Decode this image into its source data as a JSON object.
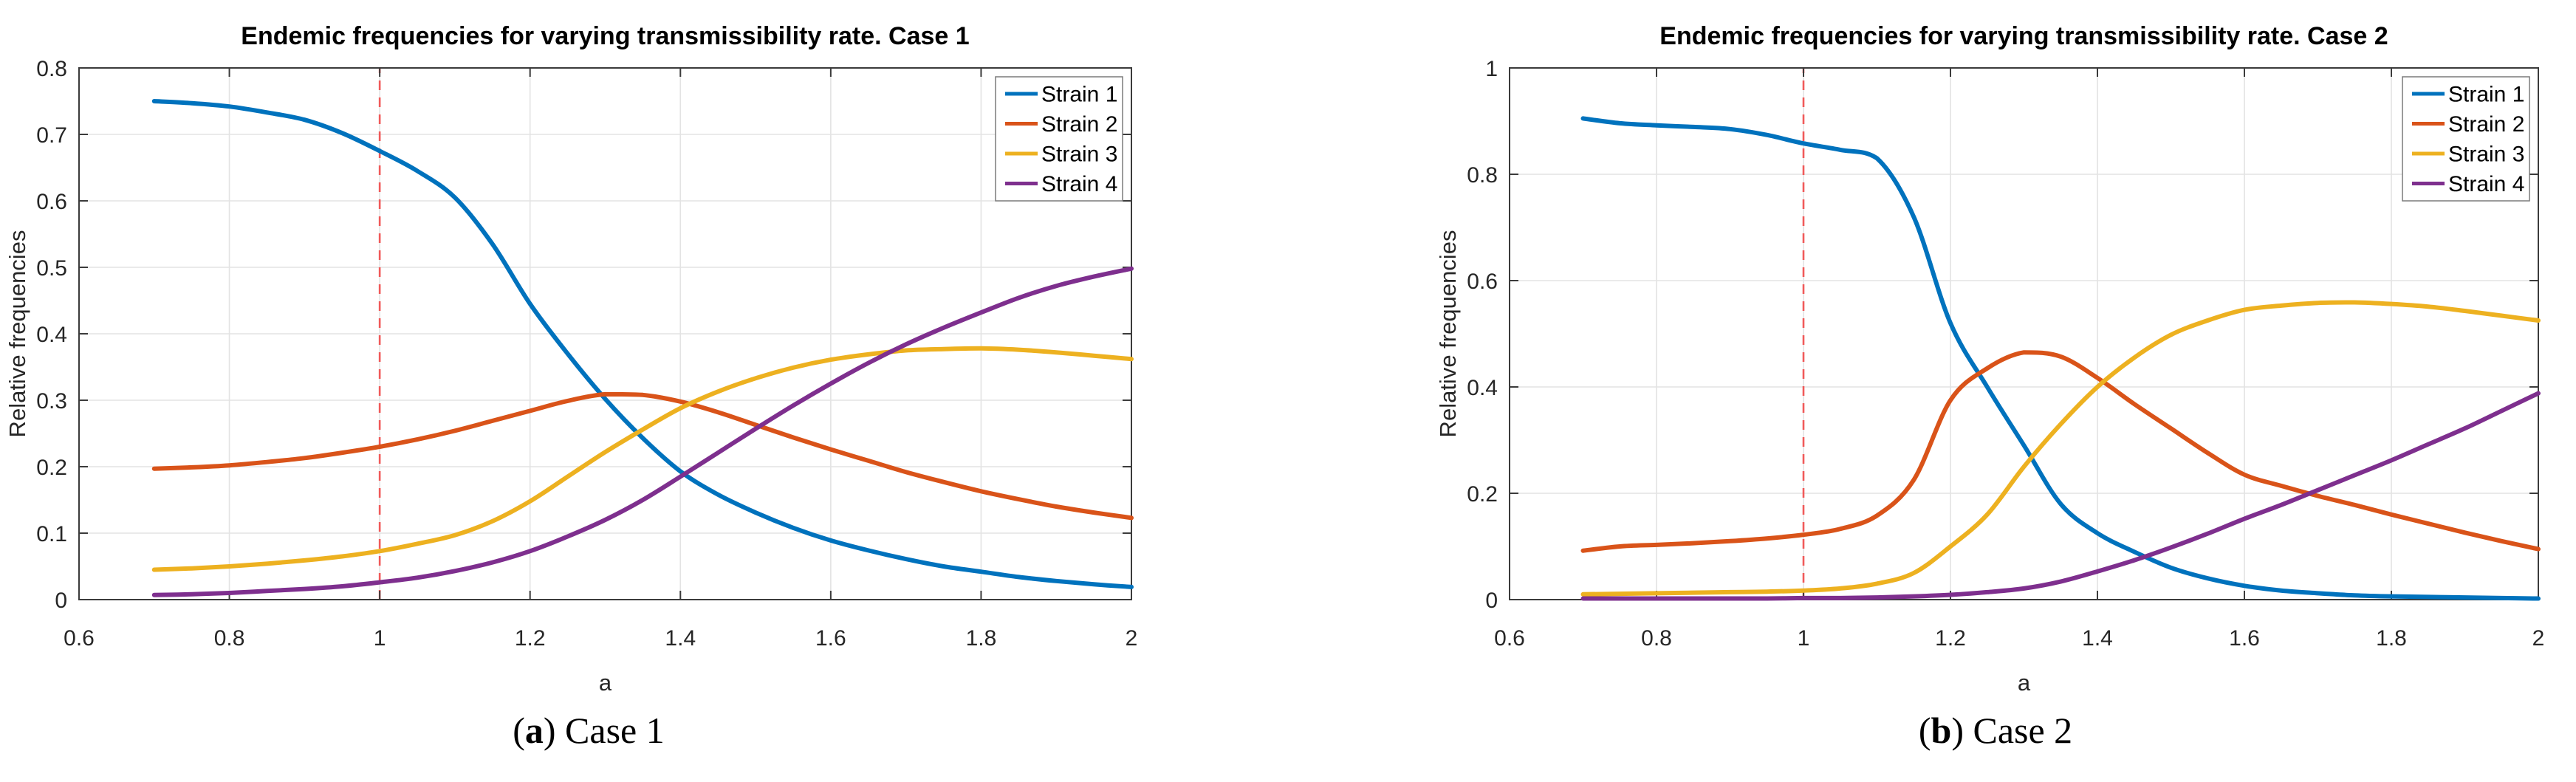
{
  "style": {
    "background": "#ffffff",
    "grid_color": "#e3e3e3",
    "axis_color": "#3b3b3b",
    "tick_text_color": "#262626",
    "title_color": "#000000",
    "vline_color": "#f05a5a",
    "legend_border_color": "#7a7a7a",
    "legend_background": "#ffffff"
  },
  "chart_data": [
    {
      "type": "line",
      "title": "Endemic frequencies for varying transmissibility rate. Case 1",
      "xlabel": "a",
      "ylabel": "Relative frequencies",
      "xlim": [
        0.6,
        2
      ],
      "ylim": [
        0,
        0.8
      ],
      "xticks": [
        0.6,
        0.8,
        1,
        1.2,
        1.4,
        1.6,
        1.8,
        2
      ],
      "yticks": [
        0,
        0.1,
        0.2,
        0.3,
        0.4,
        0.5,
        0.6,
        0.7,
        0.8
      ],
      "grid": true,
      "legend_position": "northeast",
      "vline_x": 1,
      "x": [
        0.7,
        0.75,
        0.8,
        0.85,
        0.9,
        0.95,
        1,
        1.05,
        1.1,
        1.15,
        1.2,
        1.25,
        1.3,
        1.35,
        1.4,
        1.45,
        1.5,
        1.55,
        1.6,
        1.65,
        1.7,
        1.75,
        1.8,
        1.85,
        1.9,
        1.95,
        2
      ],
      "series": [
        {
          "name": "Strain 1",
          "color": "#0072BD",
          "values": [
            0.75,
            0.747,
            0.742,
            0.733,
            0.722,
            0.702,
            0.675,
            0.645,
            0.605,
            0.535,
            0.445,
            0.37,
            0.302,
            0.243,
            0.193,
            0.158,
            0.131,
            0.108,
            0.089,
            0.074,
            0.061,
            0.05,
            0.042,
            0.034,
            0.028,
            0.023,
            0.019
          ]
        },
        {
          "name": "Strain 2",
          "color": "#D95319",
          "values": [
            0.197,
            0.199,
            0.202,
            0.207,
            0.213,
            0.221,
            0.23,
            0.241,
            0.254,
            0.269,
            0.284,
            0.299,
            0.309,
            0.308,
            0.298,
            0.282,
            0.263,
            0.244,
            0.226,
            0.209,
            0.192,
            0.177,
            0.163,
            0.151,
            0.14,
            0.131,
            0.123
          ]
        },
        {
          "name": "Strain 3",
          "color": "#EDB120",
          "values": [
            0.045,
            0.047,
            0.05,
            0.054,
            0.059,
            0.065,
            0.073,
            0.084,
            0.097,
            0.118,
            0.148,
            0.185,
            0.222,
            0.256,
            0.288,
            0.313,
            0.333,
            0.349,
            0.361,
            0.369,
            0.375,
            0.377,
            0.378,
            0.376,
            0.372,
            0.367,
            0.362
          ]
        },
        {
          "name": "Strain 4",
          "color": "#7E2F8E",
          "values": [
            0.007,
            0.008,
            0.01,
            0.013,
            0.016,
            0.02,
            0.026,
            0.033,
            0.043,
            0.056,
            0.073,
            0.095,
            0.12,
            0.15,
            0.185,
            0.221,
            0.257,
            0.292,
            0.325,
            0.356,
            0.384,
            0.409,
            0.432,
            0.454,
            0.472,
            0.486,
            0.498
          ]
        }
      ]
    },
    {
      "type": "line",
      "title": "Endemic frequencies for varying transmissibility rate. Case 2",
      "xlabel": "a",
      "ylabel": "Relative frequencies",
      "xlim": [
        0.6,
        2
      ],
      "ylim": [
        0,
        1
      ],
      "xticks": [
        0.6,
        0.8,
        1,
        1.2,
        1.4,
        1.6,
        1.8,
        2
      ],
      "yticks": [
        0,
        0.2,
        0.4,
        0.6,
        0.8,
        1
      ],
      "grid": true,
      "legend_position": "northeast",
      "vline_x": 1,
      "x": [
        0.7,
        0.75,
        0.8,
        0.85,
        0.9,
        0.95,
        1,
        1.05,
        1.1,
        1.15,
        1.2,
        1.25,
        1.3,
        1.35,
        1.4,
        1.45,
        1.5,
        1.55,
        1.6,
        1.65,
        1.7,
        1.75,
        1.8,
        1.85,
        1.9,
        1.95,
        2
      ],
      "series": [
        {
          "name": "Strain 1",
          "color": "#0072BD",
          "values": [
            0.905,
            0.896,
            0.892,
            0.889,
            0.885,
            0.874,
            0.858,
            0.846,
            0.83,
            0.72,
            0.52,
            0.4,
            0.29,
            0.18,
            0.125,
            0.09,
            0.06,
            0.04,
            0.026,
            0.017,
            0.012,
            0.008,
            0.006,
            0.005,
            0.004,
            0.003,
            0.002
          ]
        },
        {
          "name": "Strain 2",
          "color": "#D95319",
          "values": [
            0.092,
            0.1,
            0.103,
            0.106,
            0.11,
            0.115,
            0.122,
            0.133,
            0.158,
            0.225,
            0.375,
            0.435,
            0.465,
            0.457,
            0.417,
            0.368,
            0.322,
            0.276,
            0.235,
            0.214,
            0.195,
            0.178,
            0.16,
            0.143,
            0.126,
            0.11,
            0.095
          ]
        },
        {
          "name": "Strain 3",
          "color": "#EDB120",
          "values": [
            0.01,
            0.011,
            0.012,
            0.013,
            0.014,
            0.015,
            0.017,
            0.021,
            0.03,
            0.05,
            0.1,
            0.16,
            0.25,
            0.33,
            0.4,
            0.455,
            0.498,
            0.525,
            0.545,
            0.553,
            0.558,
            0.559,
            0.556,
            0.551,
            0.543,
            0.534,
            0.525
          ]
        },
        {
          "name": "Strain 4",
          "color": "#7E2F8E",
          "values": [
            0.002,
            0.002,
            0.002,
            0.002,
            0.002,
            0.002,
            0.003,
            0.003,
            0.004,
            0.006,
            0.009,
            0.014,
            0.021,
            0.034,
            0.053,
            0.074,
            0.098,
            0.124,
            0.152,
            0.178,
            0.206,
            0.234,
            0.262,
            0.292,
            0.322,
            0.355,
            0.388
          ]
        }
      ]
    }
  ],
  "captions": [
    {
      "before": "(",
      "letter": "a",
      "after": ") Case 1"
    },
    {
      "before": "(",
      "letter": "b",
      "after": ") Case 2"
    }
  ]
}
